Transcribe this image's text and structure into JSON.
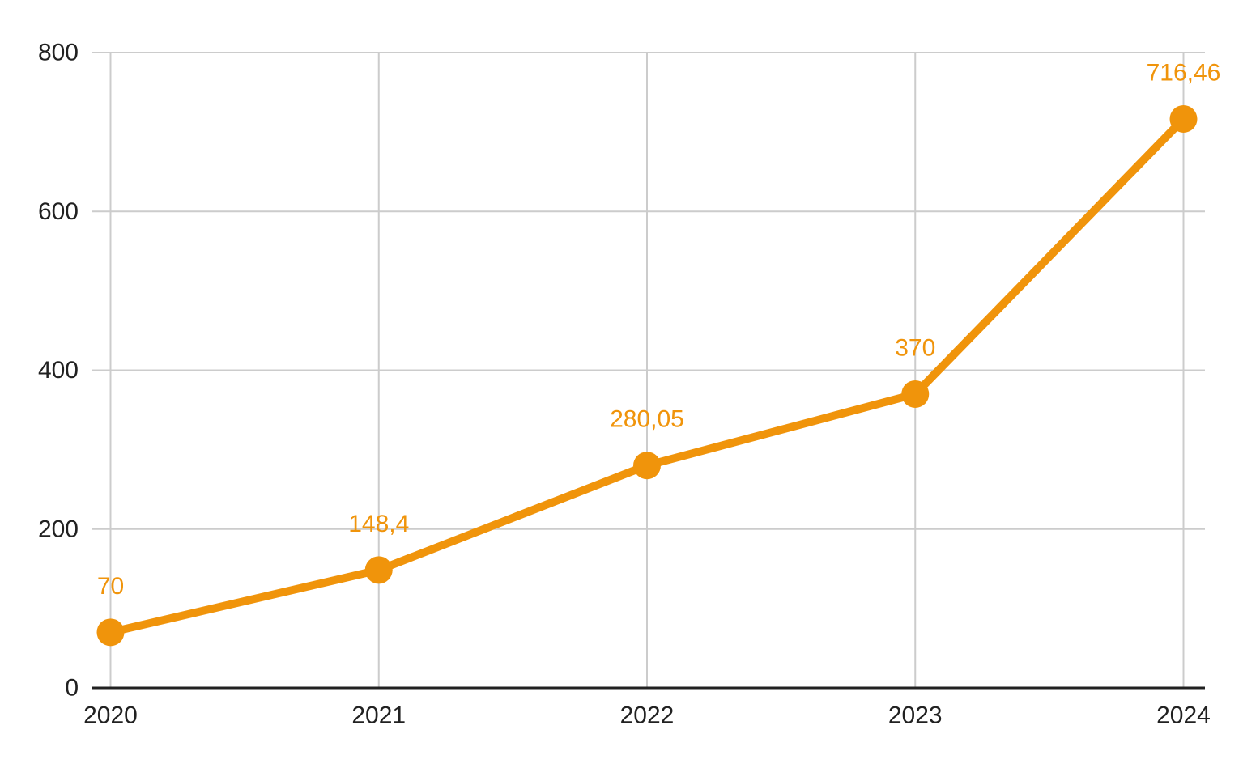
{
  "chart_data": {
    "type": "line",
    "title": "",
    "xlabel": "",
    "ylabel": "",
    "categories": [
      "2020",
      "2021",
      "2022",
      "2023",
      "2024"
    ],
    "series": [
      {
        "values": [
          70,
          148.4,
          280.05,
          370,
          716.46
        ],
        "point_labels": [
          "70",
          "148,4",
          "280,05",
          "370",
          "716,46"
        ]
      }
    ],
    "y_ticks": [
      0,
      200,
      400,
      600,
      800
    ],
    "y_tick_labels": [
      "0",
      "200",
      "400",
      "600",
      "800"
    ],
    "ylim": [
      0,
      800
    ],
    "grid": true,
    "legend": "none",
    "colors": {
      "line": "#F0940B",
      "marker": "#F0940B",
      "point_label": "#F0940B",
      "axis_text": "#212121",
      "gridline": "#CCCCCC",
      "axis_line": "#212121",
      "background": "#FFFFFF"
    }
  }
}
